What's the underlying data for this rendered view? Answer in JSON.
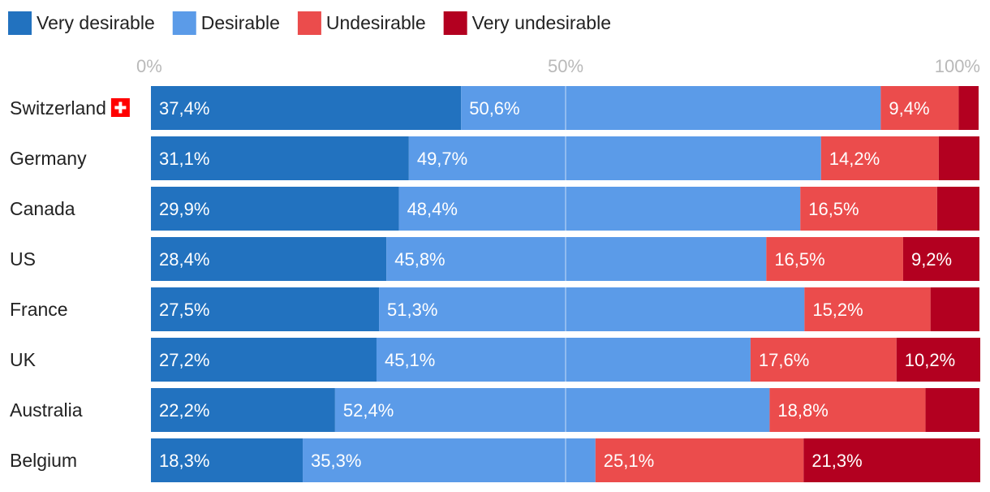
{
  "colors": {
    "very_desirable": "#2272bf",
    "desirable": "#5b9be8",
    "undesirable": "#eb4c4c",
    "very_undesirable": "#b30020",
    "flag_red": "#ff0000"
  },
  "chart_data": {
    "type": "bar",
    "orientation": "horizontal",
    "stacked": true,
    "title": "",
    "xlabel": "",
    "ylabel": "",
    "xlim": [
      0,
      100
    ],
    "x_ticks": [
      {
        "value": 0,
        "label": "0%"
      },
      {
        "value": 50,
        "label": "50%"
      },
      {
        "value": 100,
        "label": "100%"
      }
    ],
    "legend_position": "top-left",
    "categories": [
      "Switzerland",
      "Germany",
      "Canada",
      "US",
      "France",
      "UK",
      "Australia",
      "Belgium"
    ],
    "series": [
      {
        "name": "Very desirable",
        "color_key": "very_desirable",
        "values": [
          37.4,
          31.1,
          29.9,
          28.4,
          27.5,
          27.2,
          22.2,
          18.3
        ],
        "labels": [
          "37,4%",
          "31,1%",
          "29,9%",
          "28,4%",
          "27,5%",
          "27,2%",
          "22,2%",
          "18,3%"
        ]
      },
      {
        "name": "Desirable",
        "color_key": "desirable",
        "values": [
          50.6,
          49.7,
          48.4,
          45.8,
          51.3,
          45.1,
          52.4,
          35.3
        ],
        "labels": [
          "50,6%",
          "49,7%",
          "48,4%",
          "45,8%",
          "51,3%",
          "45,1%",
          "52,4%",
          "35,3%"
        ]
      },
      {
        "name": "Undesirable",
        "color_key": "undesirable",
        "values": [
          9.4,
          14.2,
          16.5,
          16.5,
          15.2,
          17.6,
          18.8,
          25.1
        ],
        "labels": [
          "9,4%",
          "14,2%",
          "16,5%",
          "16,5%",
          "15,2%",
          "17,6%",
          "18,8%",
          "25,1%"
        ]
      },
      {
        "name": "Very undesirable",
        "color_key": "very_undesirable",
        "values": [
          2.4,
          4.9,
          5.1,
          9.2,
          5.9,
          10.2,
          6.5,
          21.3
        ],
        "labels": [
          "",
          "",
          "",
          "9,2%",
          "",
          "10,2%",
          "",
          "21,3%"
        ]
      }
    ],
    "annotations": [
      {
        "category": "Switzerland",
        "icon": "swiss-flag-icon"
      }
    ]
  }
}
